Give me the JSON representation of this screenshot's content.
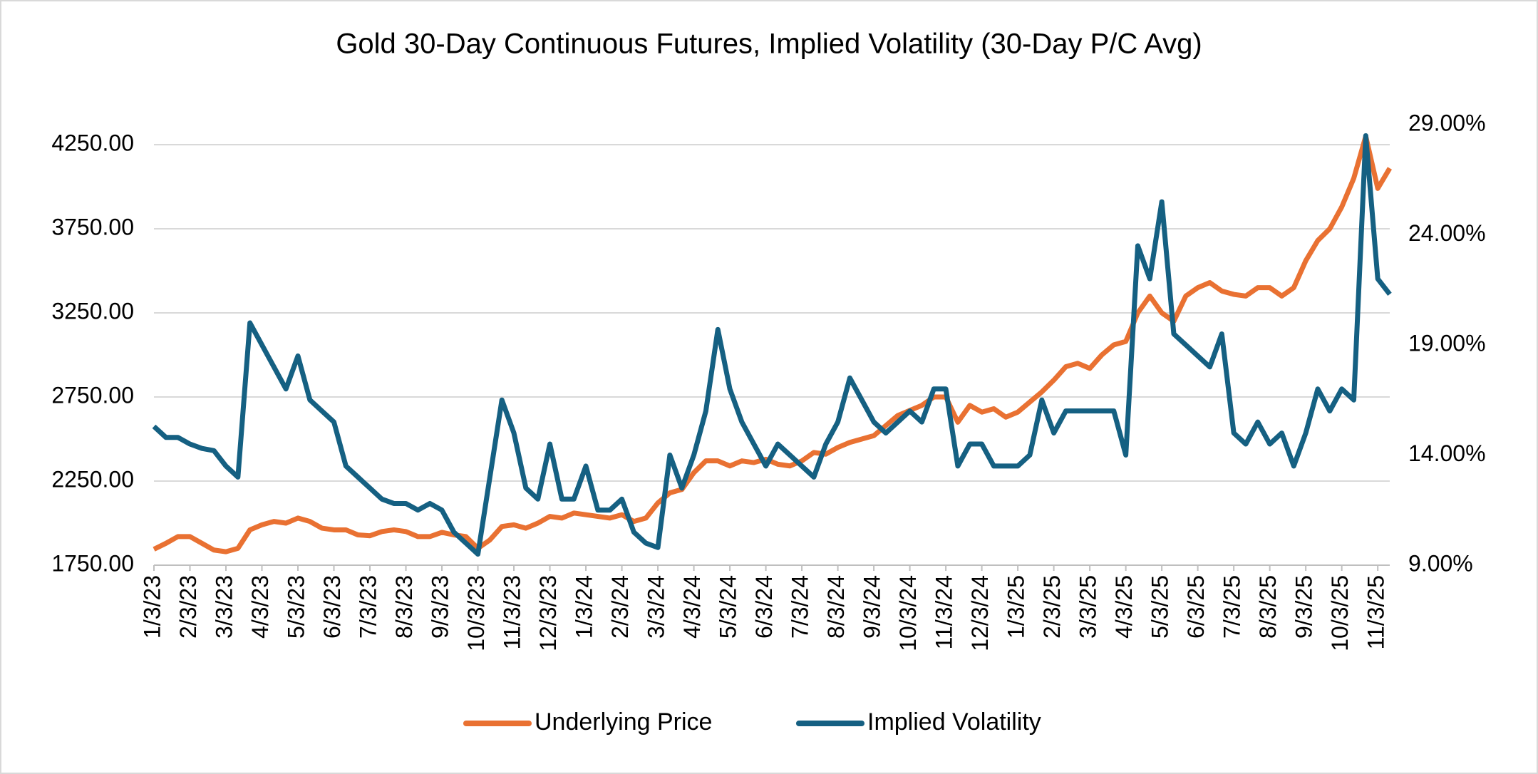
{
  "chart_data": {
    "type": "line",
    "title": "Gold 30-Day Continuous Futures, Implied Volatility (30-Day P/C Avg)",
    "categories": [
      "1/3/23",
      null,
      null,
      "2/3/23",
      null,
      null,
      "3/3/23",
      null,
      null,
      "4/3/23",
      null,
      null,
      "5/3/23",
      null,
      null,
      "6/3/23",
      null,
      null,
      "7/3/23",
      null,
      null,
      "8/3/23",
      null,
      null,
      "9/3/23",
      null,
      null,
      "10/3/23",
      null,
      null,
      "11/3/23",
      null,
      null,
      "12/3/23",
      null,
      null,
      "1/3/24",
      null,
      null,
      "2/3/24",
      null,
      null,
      "3/3/24",
      null,
      null,
      "4/3/24",
      null,
      null,
      "5/3/24",
      null,
      null,
      "6/3/24",
      null,
      null,
      "7/3/24",
      null,
      null,
      "8/3/24",
      null,
      null,
      "9/3/24",
      null,
      null,
      "10/3/24",
      null,
      null,
      "11/3/24",
      null,
      null,
      "12/3/24",
      null,
      null,
      "1/3/25",
      null,
      null,
      "2/3/25",
      null,
      null,
      "3/3/25",
      null,
      null,
      "4/3/25",
      null,
      null,
      "5/3/25",
      null,
      null,
      "6/3/25",
      null,
      null,
      "7/3/25",
      null,
      null,
      "8/3/25",
      null,
      null,
      "9/3/25",
      null,
      null,
      "10/3/25",
      null,
      null,
      "11/3/25",
      null
    ],
    "series": [
      {
        "name": "Underlying Price",
        "color": "#e97132",
        "values": [
          1845,
          1880,
          1920,
          1920,
          1880,
          1840,
          1830,
          1850,
          1960,
          1990,
          2010,
          2000,
          2030,
          2010,
          1970,
          1960,
          1960,
          1930,
          1925,
          1950,
          1960,
          1950,
          1920,
          1920,
          1945,
          1930,
          1920,
          1850,
          1900,
          1980,
          1990,
          1970,
          2000,
          2040,
          2030,
          2060,
          2050,
          2040,
          2030,
          2050,
          2010,
          2030,
          2120,
          2180,
          2200,
          2300,
          2370,
          2370,
          2340,
          2370,
          2360,
          2380,
          2350,
          2340,
          2370,
          2420,
          2410,
          2450,
          2480,
          2500,
          2520,
          2580,
          2640,
          2670,
          2700,
          2750,
          2750,
          2600,
          2700,
          2660,
          2680,
          2630,
          2660,
          2720,
          2780,
          2850,
          2930,
          2950,
          2920,
          3000,
          3060,
          3080,
          3250,
          3350,
          3250,
          3200,
          3350,
          3400,
          3430,
          3380,
          3360,
          3350,
          3400,
          3400,
          3350,
          3400,
          3560,
          3680,
          3750,
          3880,
          4050,
          4300,
          3990,
          4110
        ]
      },
      {
        "name": "Implied Volatility",
        "color": "#156082",
        "axis": "y2",
        "values": [
          15.3,
          14.8,
          14.8,
          14.5,
          14.3,
          14.2,
          13.5,
          13.0,
          20.0,
          19.0,
          18.0,
          17.0,
          18.5,
          16.5,
          16.0,
          15.5,
          13.5,
          13.0,
          12.5,
          12.0,
          11.8,
          11.8,
          11.5,
          11.8,
          11.5,
          10.5,
          10.0,
          9.5,
          13.0,
          16.5,
          15.0,
          12.5,
          12.0,
          14.5,
          12.0,
          12.0,
          13.5,
          11.5,
          11.5,
          12.0,
          10.5,
          10.0,
          9.8,
          14.0,
          12.5,
          14.0,
          16.0,
          19.7,
          17.0,
          15.5,
          14.5,
          13.5,
          14.5,
          14.0,
          13.5,
          13.0,
          14.5,
          15.5,
          17.5,
          16.5,
          15.5,
          15.0,
          15.5,
          16.0,
          15.5,
          17.0,
          17.0,
          13.5,
          14.5,
          14.5,
          13.5,
          13.5,
          13.5,
          14.0,
          16.5,
          15.0,
          16.0,
          16.0,
          16.0,
          16.0,
          16.0,
          14.0,
          23.5,
          22.0,
          25.5,
          19.5,
          19.0,
          18.5,
          18.0,
          19.5,
          15.0,
          14.5,
          15.5,
          14.5,
          15.0,
          13.5,
          15.0,
          17.0,
          16.0,
          17.0,
          16.5,
          28.5,
          22.0,
          21.3
        ]
      }
    ],
    "ylim": [
      1750,
      4500
    ],
    "yticks": [
      {
        "value": 1750,
        "label": "1750.00"
      },
      {
        "value": 2250,
        "label": "2250.00"
      },
      {
        "value": 2750,
        "label": "2750.00"
      },
      {
        "value": 3250,
        "label": "3250.00"
      },
      {
        "value": 3750,
        "label": "3750.00"
      },
      {
        "value": 4250,
        "label": "4250.00"
      }
    ],
    "y2lim": [
      9,
      30
    ],
    "y2ticks": [
      {
        "value": 9,
        "label": "9.00%"
      },
      {
        "value": 14,
        "label": "14.00%"
      },
      {
        "value": 19,
        "label": "19.00%"
      },
      {
        "value": 24,
        "label": "24.00%"
      },
      {
        "value": 29,
        "label": "29.00%"
      }
    ],
    "grid": true
  }
}
